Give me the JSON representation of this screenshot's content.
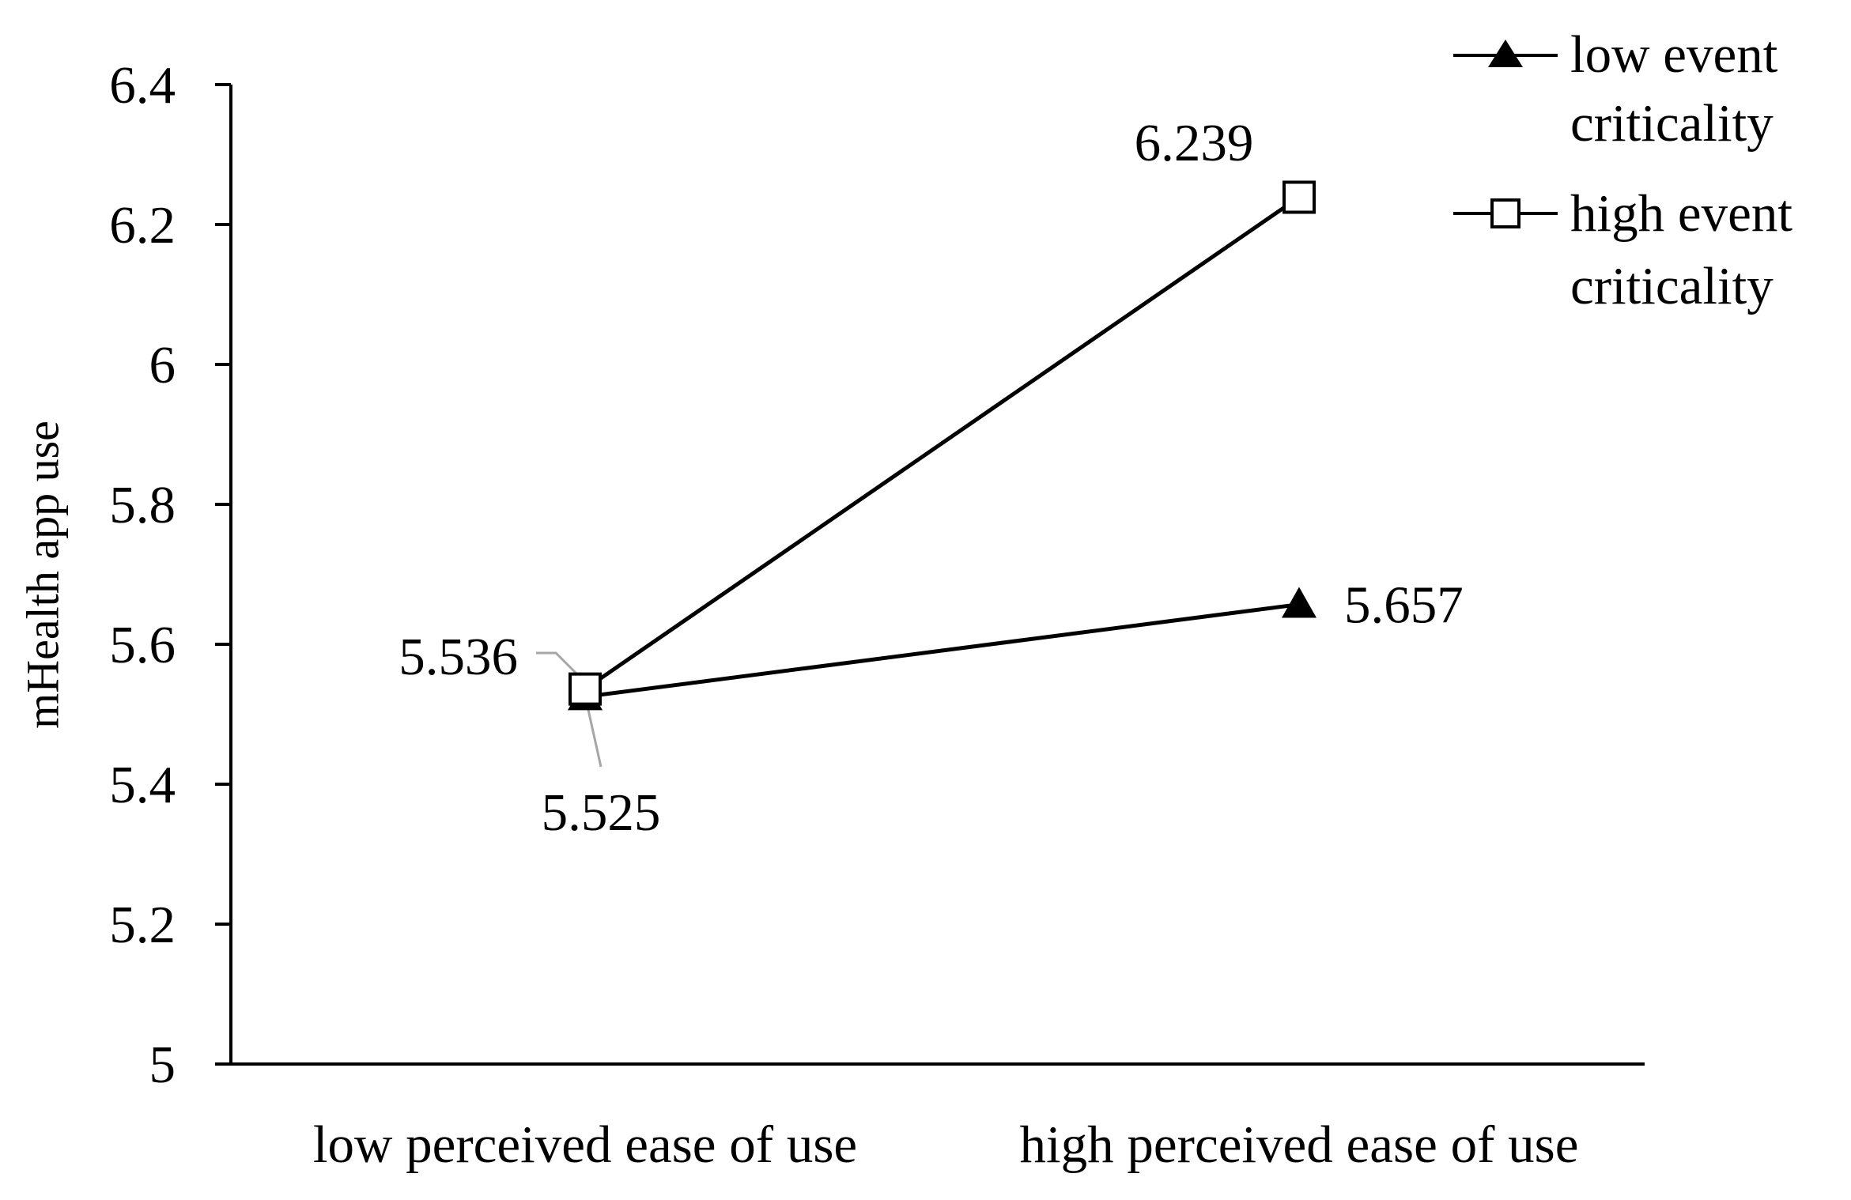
{
  "chart_data": {
    "type": "line",
    "title": "",
    "xlabel": "",
    "ylabel": "mHealth app use",
    "ylim": [
      5,
      6.4
    ],
    "yticks": [
      5,
      5.2,
      5.4,
      5.6,
      5.8,
      6,
      6.2,
      6.4
    ],
    "ytick_labels": [
      "5",
      "5.2",
      "5.4",
      "5.6",
      "5.8",
      "6",
      "6.2",
      "6.4"
    ],
    "categories": [
      "low perceived ease of use",
      "high perceived ease of use"
    ],
    "grid": false,
    "legend_position": "top-right",
    "series": [
      {
        "name": "low event criticality",
        "legend_lines": [
          "low event",
          "criticality"
        ],
        "marker": "filled-triangle",
        "values": [
          5.525,
          5.657
        ],
        "value_labels": [
          "5.525",
          "5.657"
        ]
      },
      {
        "name": "high event criticality",
        "legend_lines": [
          "high event",
          "criticality"
        ],
        "marker": "open-square",
        "values": [
          5.536,
          6.239
        ],
        "value_labels": [
          "5.536",
          "6.239"
        ]
      }
    ],
    "colors": {
      "line": "#000000",
      "leader_line": "#a6a6a6",
      "marker_fill_open": "#ffffff"
    }
  }
}
